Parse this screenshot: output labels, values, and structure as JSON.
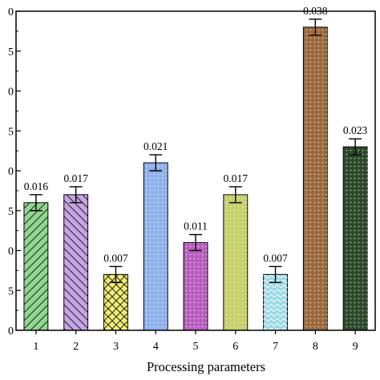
{
  "chart_data": {
    "type": "bar",
    "title": "",
    "xlabel": "Processing parameters",
    "ylabel": "",
    "categories": [
      "1",
      "2",
      "3",
      "4",
      "5",
      "6",
      "7",
      "8",
      "9"
    ],
    "values": [
      0.016,
      0.017,
      0.007,
      0.021,
      0.011,
      0.017,
      0.007,
      0.038,
      0.023
    ],
    "value_labels": [
      "0.016",
      "0.017",
      "0.007",
      "0.021",
      "0.011",
      "0.017",
      "0.007",
      "0.038",
      "0.023"
    ],
    "error": [
      0.001,
      0.001,
      0.001,
      0.001,
      0.001,
      0.001,
      0.001,
      0.001,
      0.001
    ],
    "ylim": [
      0,
      0.04
    ],
    "ytick_labels": [
      "0",
      "5",
      "0",
      "5",
      "0",
      "5",
      "0",
      "5",
      "0"
    ],
    "bar_colors": [
      "#8fd98f",
      "#c6a3e3",
      "#f2ef6a",
      "#8fb1ee",
      "#b85ec0",
      "#c6cf6a",
      "#9adbe6",
      "#9a6a3c",
      "#2d4a2a"
    ],
    "bar_patterns": [
      "forward-diagonal",
      "backward-diagonal",
      "crosshatch",
      "dots",
      "dots",
      "dots",
      "waves",
      "dots",
      "dots"
    ],
    "grid": false,
    "legend": "none"
  }
}
